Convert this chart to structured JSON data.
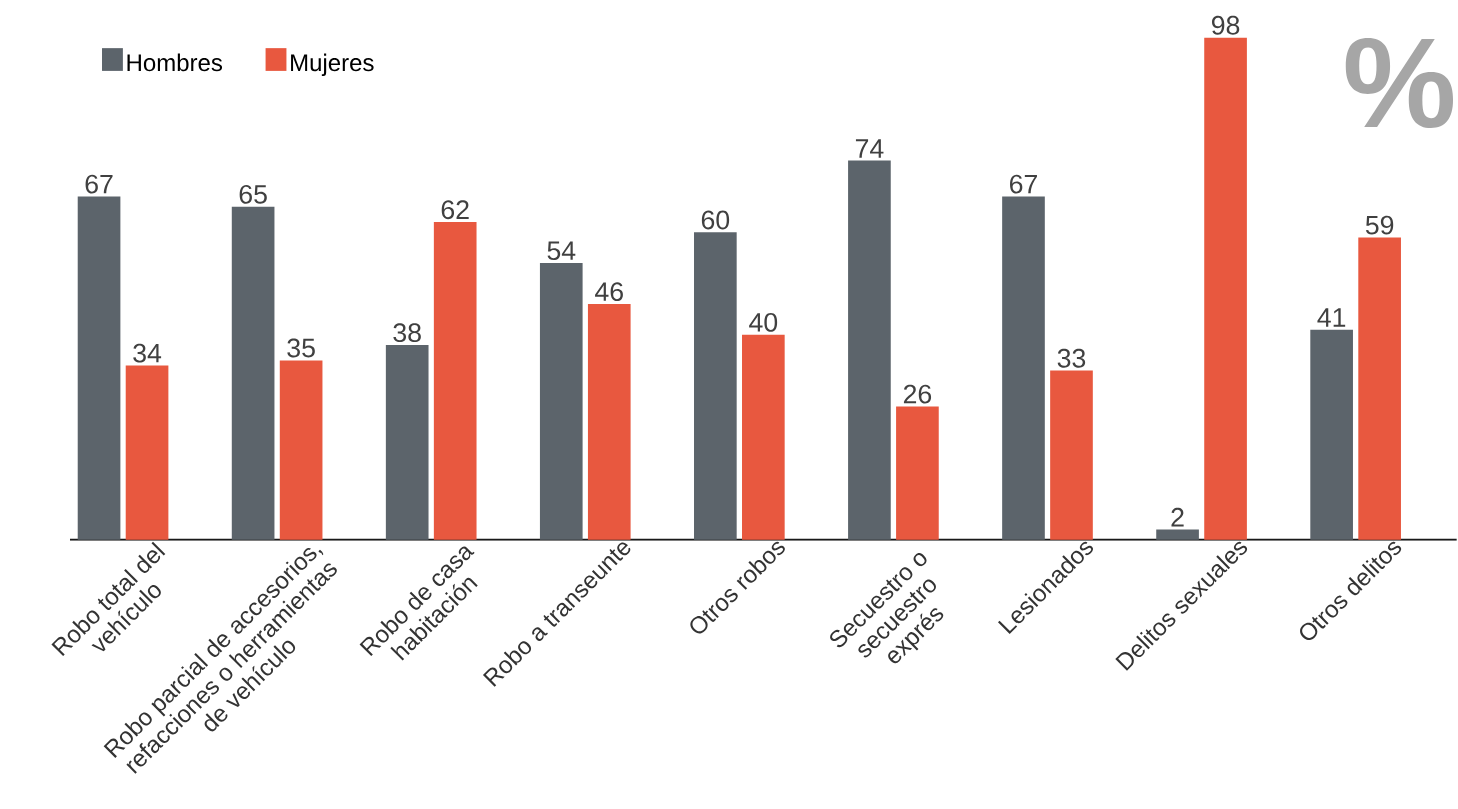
{
  "chart_data": {
    "type": "bar",
    "categories": [
      "Robo total del vehículo",
      "Robo parcial de accesorios, refacciones o herramientas de vehículo",
      "Robo de casa habitación",
      "Robo a transeunte",
      "Otros robos",
      "Secuestro o secuestro exprés",
      "Lesionados",
      "Delitos sexuales",
      "Otros delitos"
    ],
    "series": [
      {
        "name": "Hombres",
        "color": "#5c646b",
        "values": [
          67,
          65,
          38,
          54,
          60,
          74,
          67,
          2,
          41
        ]
      },
      {
        "name": "Mujeres",
        "color": "#e8583f",
        "values": [
          34,
          35,
          62,
          46,
          40,
          26,
          33,
          98,
          59
        ]
      }
    ],
    "legend": "top left",
    "data_labels": true,
    "tick_labels": "x",
    "annotations": [
      "%"
    ]
  }
}
